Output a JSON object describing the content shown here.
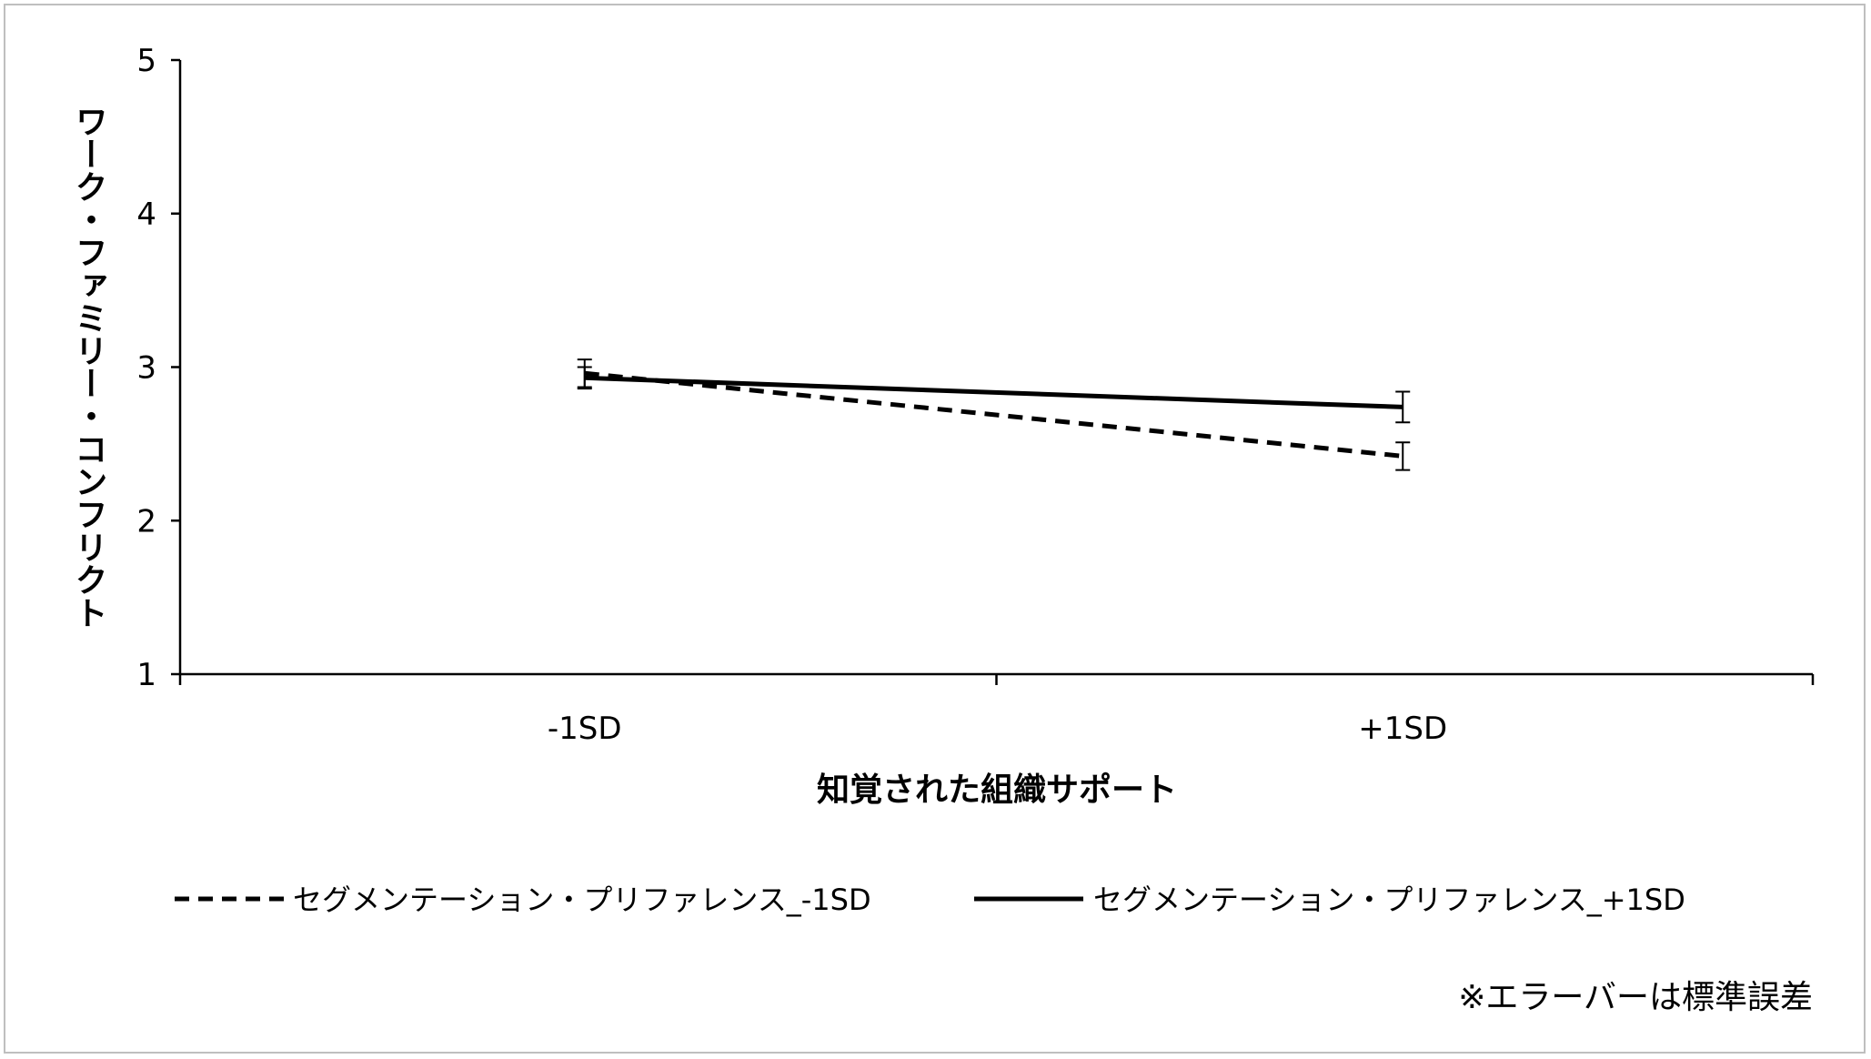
{
  "chart_data": {
    "type": "line",
    "categories": [
      "-1SD",
      "+1SD"
    ],
    "xlabel": "知覚された組織サポート",
    "ylabel": "ワーク・ファミリー・コンフリクト",
    "ylim": [
      1,
      5
    ],
    "yticks": [
      1,
      2,
      3,
      4,
      5
    ],
    "grid": false,
    "legend_position": "bottom",
    "series": [
      {
        "name": "セグメンテーション・プリファレンス_-1SD",
        "values": [
          2.96,
          2.42
        ],
        "errors": [
          0.09,
          0.09
        ],
        "line_style": "dashed",
        "color": "#000000"
      },
      {
        "name": "セグメンテーション・プリファレンス_+1SD",
        "values": [
          2.93,
          2.74
        ],
        "errors": [
          0.07,
          0.1
        ],
        "line_style": "solid",
        "color": "#000000"
      }
    ],
    "annotation": "※エラーバーは標準誤差"
  }
}
